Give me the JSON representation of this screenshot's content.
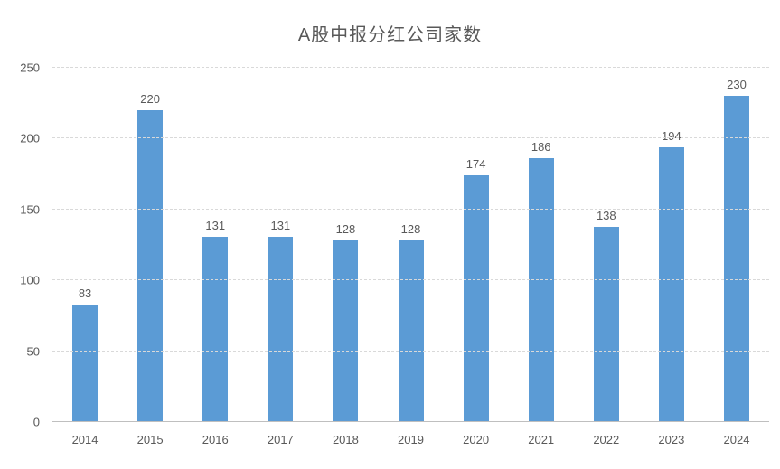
{
  "chart_data": {
    "type": "bar",
    "title": "A股中报分红公司家数",
    "categories": [
      "2014",
      "2015",
      "2016",
      "2017",
      "2018",
      "2019",
      "2020",
      "2021",
      "2022",
      "2023",
      "2024"
    ],
    "values": [
      83,
      220,
      131,
      131,
      128,
      128,
      174,
      186,
      138,
      194,
      230
    ],
    "xlabel": "",
    "ylabel": "",
    "ylim": [
      0,
      250
    ],
    "yticks": [
      0,
      50,
      100,
      150,
      200,
      250
    ],
    "grid": "horizontal-dashed",
    "legend": "none",
    "data_labels": "above-bars",
    "colors": {
      "bar": "#5b9bd5",
      "title_text": "#595959",
      "axis_text": "#595959",
      "gridline": "#d9d9d9",
      "axis_line": "#bfbfbf",
      "background": "#ffffff"
    }
  }
}
